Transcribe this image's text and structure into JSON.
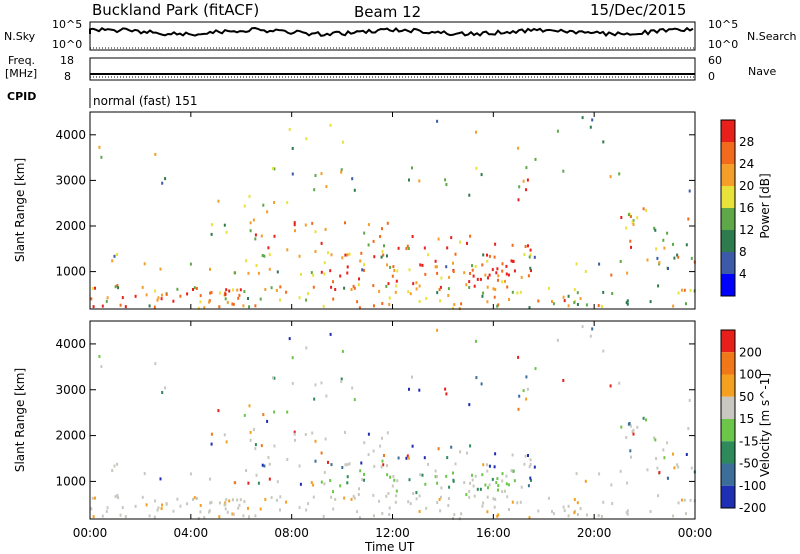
{
  "header": {
    "station": "Buckland Park (fitACF)",
    "beam": "Beam 12",
    "date": "15/Dec/2015"
  },
  "left_labels": {
    "nsky": "N.Sky",
    "nsky_top": "10^5",
    "nsky_bottom": "10^0",
    "freq": "Freq.",
    "freq_unit": "[MHz]",
    "freq_top": "18",
    "freq_bottom": "8",
    "cpid": "CPID"
  },
  "right_labels": {
    "nsearch": "N.Search",
    "nsearch_top": "10^5",
    "nsearch_bottom": "10^0",
    "nave": "Nave",
    "nave_top": "60",
    "nave_bottom": "0"
  },
  "cpid_text": "normal (fast) 151",
  "colors": {
    "power": [
      "#0000ff",
      "#3c5aa8",
      "#2e7b4e",
      "#5fa84a",
      "#e8e23a",
      "#f59e2a",
      "#f46a1c",
      "#e8201c"
    ],
    "velocity": [
      "#1f2fb4",
      "#3c6e9a",
      "#2e8a5a",
      "#6cc64a",
      "#c8c8c0",
      "#f5a020",
      "#f07818",
      "#e8201c"
    ]
  },
  "chart_data": [
    {
      "type": "heatmap",
      "panel": "power",
      "xlabel": "Time UT",
      "ylabel": "Slant Range [km]",
      "colorbar_label": "Power [dB]",
      "colorbar_ticks": [
        "4",
        "8",
        "12",
        "16",
        "20",
        "24",
        "28"
      ],
      "y_ticks": [
        "1000",
        "2000",
        "3000",
        "4000"
      ],
      "x_ticks": [
        "00:00",
        "04:00",
        "08:00",
        "12:00",
        "16:00",
        "20:00",
        "00:00"
      ],
      "xlim_hours": [
        0,
        24
      ],
      "ylim_km": [
        180,
        4500
      ]
    },
    {
      "type": "heatmap",
      "panel": "velocity",
      "xlabel": "Time UT",
      "ylabel": "Slant Range [km]",
      "colorbar_label": "Velocity [m s^-1]",
      "colorbar_ticks": [
        "200",
        "100",
        "50",
        "15",
        "-15",
        "-50",
        "-100",
        "-200"
      ],
      "y_ticks": [
        "1000",
        "2000",
        "3000",
        "4000"
      ],
      "x_ticks": [
        "00:00",
        "04:00",
        "08:00",
        "12:00",
        "16:00",
        "20:00",
        "00:00"
      ],
      "xlim_hours": [
        0,
        24
      ],
      "ylim_km": [
        180,
        4500
      ]
    }
  ]
}
